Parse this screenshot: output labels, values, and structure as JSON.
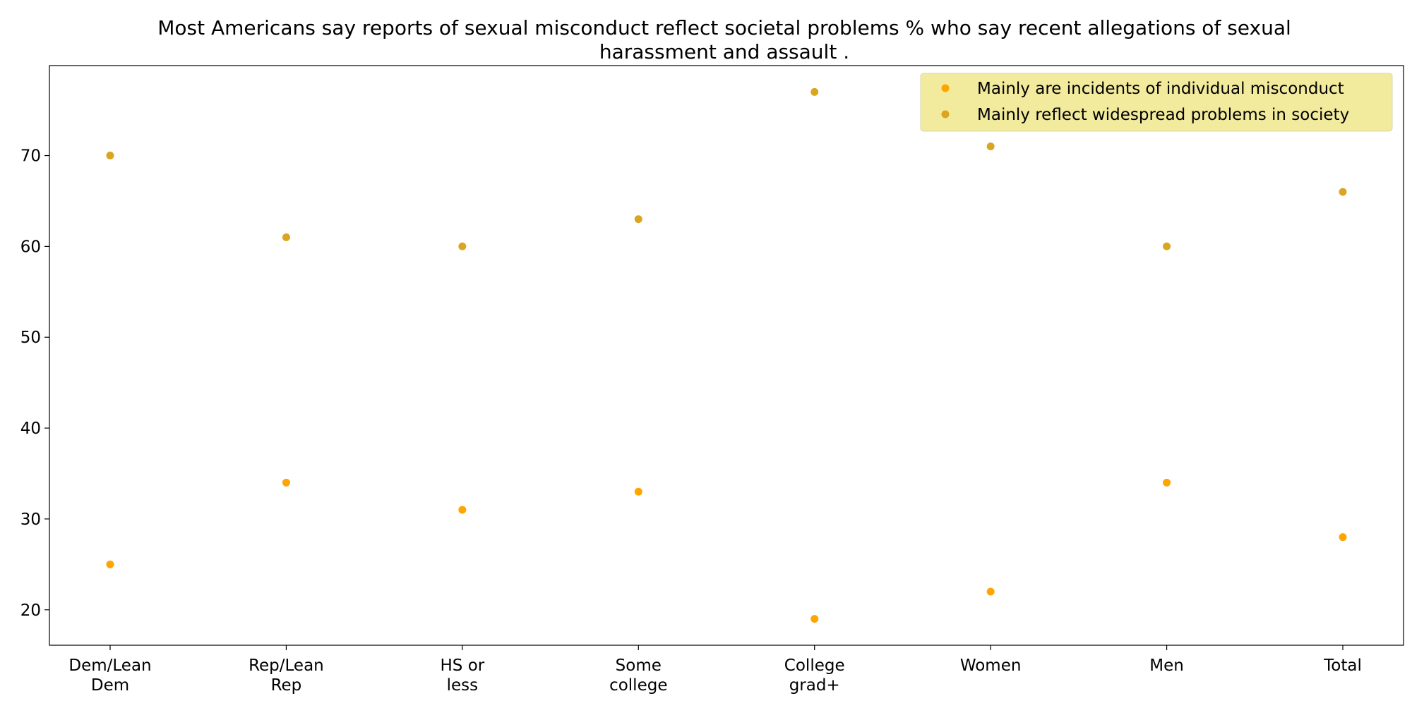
{
  "chart_data": {
    "type": "scatter",
    "title_lines": [
      "Most Americans say reports of sexual misconduct reflect societal problems % who say recent allegations of sexual",
      "harassment and assault ."
    ],
    "xlabel": "",
    "ylabel": "",
    "categories": [
      [
        "Dem/Lean",
        "Dem"
      ],
      [
        "Rep/Lean",
        "Rep"
      ],
      [
        "HS or",
        "less"
      ],
      [
        "Some",
        "college"
      ],
      [
        "College",
        "grad+"
      ],
      [
        "Women"
      ],
      [
        "Men"
      ],
      [
        "Total"
      ]
    ],
    "series": [
      {
        "name": "Mainly are incidents of individual misconduct",
        "color": "#FFA500",
        "values": [
          25,
          34,
          31,
          33,
          19,
          22,
          34,
          28
        ]
      },
      {
        "name": "Mainly reflect widespread problems in society",
        "color": "#DAA520",
        "values": [
          70,
          61,
          60,
          63,
          77,
          71,
          60,
          66
        ]
      }
    ],
    "ylim": [
      16.1,
      79.9
    ],
    "yticks": [
      20,
      30,
      40,
      50,
      60,
      70
    ],
    "grid": false,
    "legend": {
      "placement": "top-right",
      "background": "#F0E68C"
    }
  }
}
